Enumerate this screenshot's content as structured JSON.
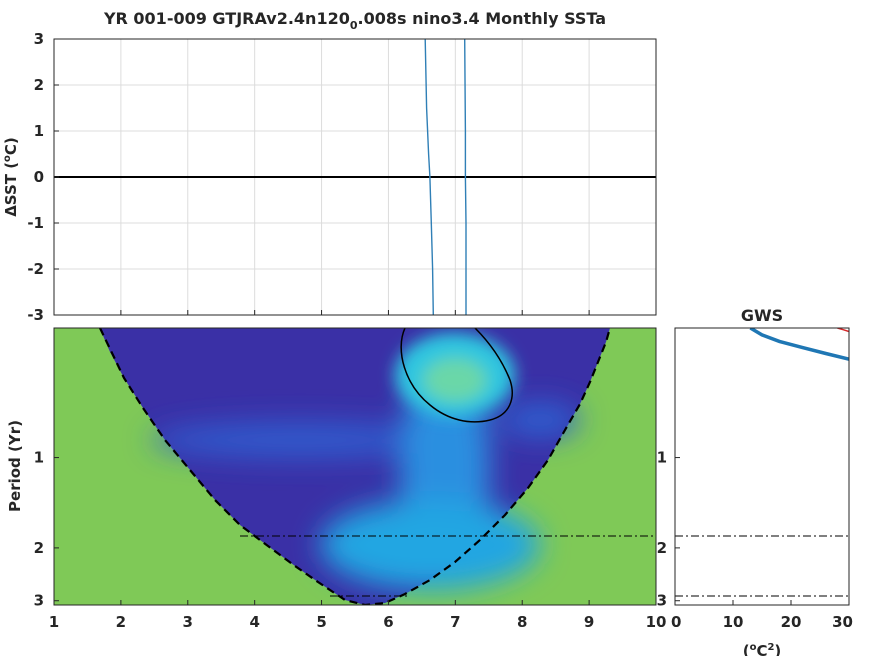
{
  "chart_data": [
    {
      "type": "line",
      "title_main": "YR 001-009 GTJRAv2.4n120",
      "title_sub": "0",
      "title_tail": ".008s nino3.4 Monthly SSTa",
      "ylabel_prefix": "ΔSST (",
      "ylabel_sup": "o",
      "ylabel_suffix": "C)",
      "xlim": [
        1,
        10
      ],
      "ylim": [
        -3,
        3
      ],
      "y_ticks": [
        "3",
        "2",
        "1",
        "0",
        "-1",
        "-2",
        "-3"
      ],
      "y_tick_values": [
        3,
        2,
        1,
        0,
        -1,
        -2,
        -3
      ],
      "grid": true,
      "zero_line": 0,
      "series": [
        {
          "x": [
            6.55,
            6.57,
            6.6,
            6.62,
            6.64,
            6.66,
            6.67
          ],
          "y": [
            3,
            1.5,
            0.5,
            0,
            -1,
            -2,
            -3
          ]
        },
        {
          "x": [
            7.14,
            7.15,
            7.15,
            7.16,
            7.16
          ],
          "y": [
            3,
            1,
            0,
            -1,
            -3
          ]
        }
      ],
      "line_color": "#2f7fb6"
    },
    {
      "type": "heatmap",
      "ylabel": "Period (Yr)",
      "x_ticks": [
        "1",
        "2",
        "3",
        "4",
        "5",
        "6",
        "7",
        "8",
        "9",
        "10"
      ],
      "x_tick_values": [
        1,
        2,
        3,
        4,
        5,
        6,
        7,
        8,
        9,
        10
      ],
      "y_ticks": [
        "1",
        "2",
        "3"
      ],
      "y_tick_values": [
        1,
        2,
        3
      ],
      "ylim": [
        0.37,
        3.1
      ],
      "xlim": [
        1,
        10
      ],
      "y_scale": "log",
      "cone_of_influence": true,
      "significance_contour_x_center": 7.0,
      "peak_period": 0.6,
      "colors": {
        "low": "#3a30a6",
        "mid": "#1fa8e6",
        "high": "#7fd65a",
        "masked": "#7fc957",
        "cone": "#000000"
      }
    },
    {
      "type": "line",
      "title": "GWS",
      "xlabel_prefix": "(",
      "xlabel_sup1": "o",
      "xlabel_mid": "C",
      "xlabel_sup2": "2",
      "xlabel_suffix": ")",
      "x_ticks": [
        "0",
        "10",
        "20",
        "30"
      ],
      "x_tick_values": [
        0,
        10,
        20,
        30
      ],
      "y_ticks": [
        "1",
        "2",
        "3"
      ],
      "y_tick_values": [
        1,
        2,
        3
      ],
      "xlim": [
        0,
        30
      ],
      "ylim": [
        0.37,
        3.1
      ],
      "y_scale": "log",
      "series": [
        {
          "color": "#1f77b4",
          "x": [
            13,
            15,
            18,
            22,
            26,
            30
          ],
          "y": [
            0.37,
            0.39,
            0.41,
            0.43,
            0.45,
            0.47
          ]
        },
        {
          "color": "#d62728",
          "x": [
            28,
            29,
            30
          ],
          "y": [
            0.37,
            0.375,
            0.38
          ]
        }
      ]
    }
  ]
}
